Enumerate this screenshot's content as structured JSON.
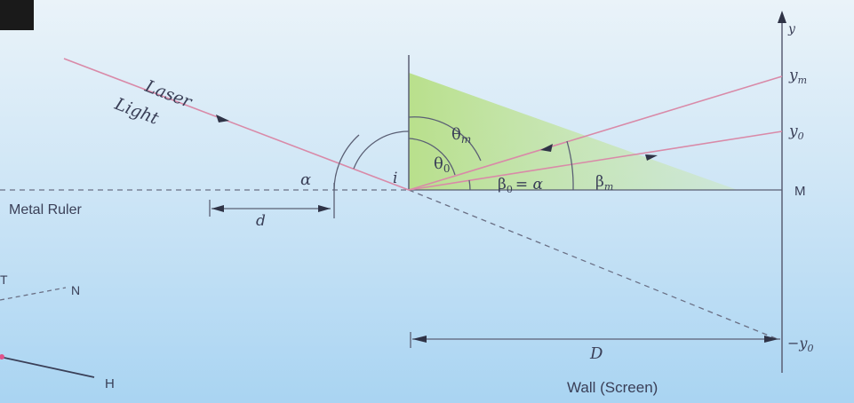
{
  "labels": {
    "laser": "Laser",
    "light": "Light",
    "alpha": "α",
    "incidence": "i",
    "theta_m": "θ",
    "theta_m_sub": "m",
    "theta_0": "θ",
    "theta_0_sub": "0",
    "beta_0": "β",
    "beta_0_sub": "0",
    "beta_0_eq": "= α",
    "beta_m": "β",
    "beta_m_sub": "m",
    "metal_ruler": "Metal  Ruler",
    "d": "d",
    "D": "D",
    "y_axis": "y",
    "y_m": "y",
    "y_m_sub": "m",
    "y_0": "y",
    "y_0_sub": "0",
    "minus_y_0": "−y",
    "minus_y_0_sub": "0",
    "M": "M",
    "T": "T",
    "N": "N",
    "H": "H",
    "wall": "Wall  (Screen)"
  },
  "colors": {
    "laser_ray": "#d98aa8",
    "lines": "#5a5f74",
    "shading": "#b9e08a",
    "label": "#3a3f57"
  }
}
